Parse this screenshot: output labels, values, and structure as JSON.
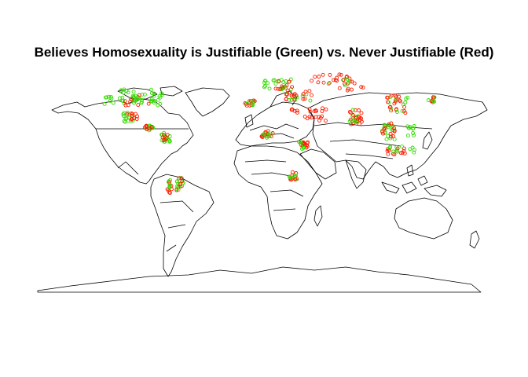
{
  "title": "Believes Homosexuality is Justifiable (Green) vs. Never Justifiable (Red)",
  "colors": {
    "justifiable": "#33dd00",
    "never_justifiable": "#ff1a00",
    "border": "#000000",
    "background": "#ffffff"
  },
  "map": {
    "type": "scatter-on-world-map",
    "projection": "equirectangular",
    "legend": "none",
    "axes": "none",
    "clusters": [
      {
        "group": "justifiable",
        "lon": -97,
        "lat": 38,
        "spread": [
          14,
          6
        ],
        "count": 34
      },
      {
        "group": "justifiable",
        "lon": -80,
        "lat": 36,
        "spread": [
          5,
          5
        ],
        "count": 14
      },
      {
        "group": "justifiable",
        "lon": -118,
        "lat": 35,
        "spread": [
          4,
          4
        ],
        "count": 8
      },
      {
        "group": "never_justifiable",
        "lon": -95,
        "lat": 36,
        "spread": [
          12,
          5
        ],
        "count": 8
      },
      {
        "group": "justifiable",
        "lon": -102,
        "lat": 22,
        "spread": [
          5,
          4
        ],
        "count": 14
      },
      {
        "group": "never_justifiable",
        "lon": -100,
        "lat": 21,
        "spread": [
          5,
          4
        ],
        "count": 10
      },
      {
        "group": "justifiable",
        "lon": -86,
        "lat": 13,
        "spread": [
          3,
          2
        ],
        "count": 10
      },
      {
        "group": "never_justifiable",
        "lon": -87,
        "lat": 14,
        "spread": [
          3,
          2
        ],
        "count": 8
      },
      {
        "group": "justifiable",
        "lon": -73,
        "lat": 6,
        "spread": [
          4,
          4
        ],
        "count": 16
      },
      {
        "group": "never_justifiable",
        "lon": -74,
        "lat": 5,
        "spread": [
          3,
          3
        ],
        "count": 6
      },
      {
        "group": "justifiable",
        "lon": -62,
        "lat": -32,
        "spread": [
          3,
          6
        ],
        "count": 14
      },
      {
        "group": "never_justifiable",
        "lon": -62,
        "lat": -32,
        "spread": [
          3,
          6
        ],
        "count": 6
      },
      {
        "group": "never_justifiable",
        "lon": -70,
        "lat": -34,
        "spread": [
          2,
          5
        ],
        "count": 8
      },
      {
        "group": "justifiable",
        "lon": -70,
        "lat": -30,
        "spread": [
          2,
          5
        ],
        "count": 6
      },
      {
        "group": "never_justifiable",
        "lon": -6,
        "lat": 33,
        "spread": [
          4,
          2
        ],
        "count": 10
      },
      {
        "group": "justifiable",
        "lon": -5,
        "lat": 33,
        "spread": [
          4,
          2
        ],
        "count": 6
      },
      {
        "group": "never_justifiable",
        "lon": 8,
        "lat": 8,
        "spread": [
          5,
          3
        ],
        "count": 16
      },
      {
        "group": "justifiable",
        "lon": 8,
        "lat": 7,
        "spread": [
          5,
          3
        ],
        "count": 6
      },
      {
        "group": "never_justifiable",
        "lon": 30,
        "lat": 28,
        "spread": [
          3,
          3
        ],
        "count": 6
      },
      {
        "group": "never_justifiable",
        "lon": 37,
        "lat": 0,
        "spread": [
          3,
          3
        ],
        "count": 14
      },
      {
        "group": "justifiable",
        "lon": 36,
        "lat": -1,
        "spread": [
          3,
          3
        ],
        "count": 6
      },
      {
        "group": "never_justifiable",
        "lon": 29,
        "lat": -25,
        "spread": [
          3,
          3
        ],
        "count": 10
      },
      {
        "group": "justifiable",
        "lon": 28,
        "lat": -26,
        "spread": [
          3,
          3
        ],
        "count": 6
      },
      {
        "group": "never_justifiable",
        "lon": 45,
        "lat": 24,
        "spread": [
          10,
          5
        ],
        "count": 18
      },
      {
        "group": "justifiable",
        "lon": 32,
        "lat": 38,
        "spread": [
          10,
          4
        ],
        "count": 10
      },
      {
        "group": "never_justifiable",
        "lon": 33,
        "lat": 39,
        "spread": [
          12,
          4
        ],
        "count": 16
      },
      {
        "group": "justifiable",
        "lon": 15,
        "lat": 48,
        "spread": [
          12,
          4
        ],
        "count": 22
      },
      {
        "group": "never_justifiable",
        "lon": 22,
        "lat": 47,
        "spread": [
          10,
          4
        ],
        "count": 10
      },
      {
        "group": "never_justifiable",
        "lon": 60,
        "lat": 52,
        "spread": [
          18,
          4
        ],
        "count": 18
      },
      {
        "group": "justifiable",
        "lon": 65,
        "lat": 50,
        "spread": [
          12,
          4
        ],
        "count": 6
      },
      {
        "group": "never_justifiable",
        "lon": 78,
        "lat": 22,
        "spread": [
          5,
          6
        ],
        "count": 22
      },
      {
        "group": "justifiable",
        "lon": 78,
        "lat": 22,
        "spread": [
          5,
          6
        ],
        "count": 8
      },
      {
        "group": "never_justifiable",
        "lon": 110,
        "lat": 32,
        "spread": [
          8,
          7
        ],
        "count": 20
      },
      {
        "group": "justifiable",
        "lon": 112,
        "lat": 32,
        "spread": [
          8,
          7
        ],
        "count": 10
      },
      {
        "group": "justifiable",
        "lon": 104,
        "lat": 10,
        "spread": [
          5,
          6
        ],
        "count": 18
      },
      {
        "group": "never_justifiable",
        "lon": 104,
        "lat": 12,
        "spread": [
          5,
          6
        ],
        "count": 12
      },
      {
        "group": "justifiable",
        "lon": 122,
        "lat": 11,
        "spread": [
          3,
          4
        ],
        "count": 10
      },
      {
        "group": "never_justifiable",
        "lon": 110,
        "lat": -5,
        "spread": [
          8,
          3
        ],
        "count": 14
      },
      {
        "group": "justifiable",
        "lon": 115,
        "lat": -4,
        "spread": [
          10,
          3
        ],
        "count": 10
      },
      {
        "group": "never_justifiable",
        "lon": 138,
        "lat": 36,
        "spread": [
          3,
          3
        ],
        "count": 6
      },
      {
        "group": "justifiable",
        "lon": 138,
        "lat": 36,
        "spread": [
          3,
          3
        ],
        "count": 4
      },
      {
        "group": "never_justifiable",
        "lon": 72,
        "lat": 48,
        "spread": [
          15,
          5
        ],
        "count": 10
      }
    ]
  }
}
